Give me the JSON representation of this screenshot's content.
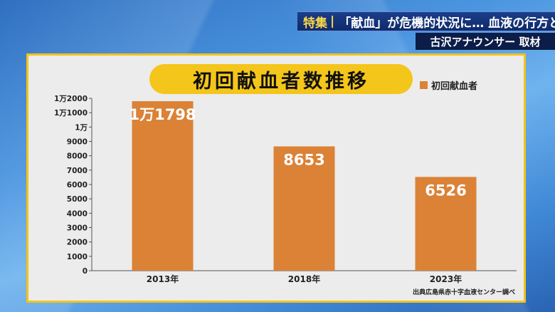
{
  "telop": {
    "tag": "特集",
    "headline": "「献血」が危機的状況に… 血液の行方とは",
    "reporter": "古沢アナウンサー 取材"
  },
  "chart_data": {
    "type": "bar",
    "title": "初回献血者数推移",
    "categories": [
      "2013年",
      "2018年",
      "2023年"
    ],
    "series": [
      {
        "name": "初回献血者",
        "values": [
          11798,
          8653,
          6526
        ],
        "labels": [
          "1万1798",
          "8653",
          "6526"
        ]
      }
    ],
    "ylim": [
      0,
      12000
    ],
    "yticks": [
      {
        "value": 0,
        "label": "0"
      },
      {
        "value": 1000,
        "label": "1000"
      },
      {
        "value": 2000,
        "label": "2000"
      },
      {
        "value": 3000,
        "label": "3000"
      },
      {
        "value": 4000,
        "label": "4000"
      },
      {
        "value": 5000,
        "label": "5000"
      },
      {
        "value": 6000,
        "label": "6000"
      },
      {
        "value": 7000,
        "label": "7000"
      },
      {
        "value": 8000,
        "label": "8000"
      },
      {
        "value": 9000,
        "label": "9000"
      },
      {
        "value": 10000,
        "label": "1万"
      },
      {
        "value": 11000,
        "label": "1万1000"
      },
      {
        "value": 12000,
        "label": "1万2000"
      }
    ],
    "grid": false,
    "legend_position": "top-right",
    "bar_color": "#db8236",
    "source": "出典広島県赤十字血液センター調べ"
  }
}
